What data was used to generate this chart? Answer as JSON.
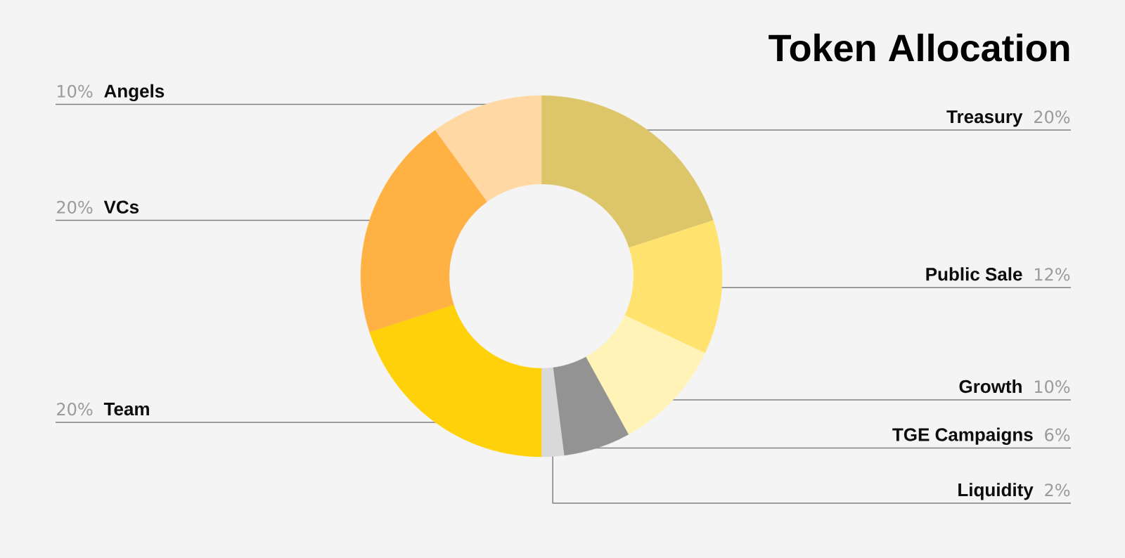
{
  "chart_data": {
    "type": "donut",
    "title": "Token Allocation",
    "categories": [
      "Treasury",
      "Public Sale",
      "Growth",
      "TGE Campaigns",
      "Liquidity",
      "Team",
      "VCs",
      "Angels"
    ],
    "values": [
      20,
      12,
      10,
      6,
      2,
      20,
      20,
      10
    ],
    "colors": [
      "#DDC66A",
      "#FFE36E",
      "#FFF3B8",
      "#939393",
      "#D9D9D9",
      "#FFD10A",
      "#FFB143",
      "#FFD8A3"
    ],
    "value_labels": [
      "20%",
      "12%",
      "10%",
      "6%",
      "2%",
      "20%",
      "20%",
      "10%"
    ]
  }
}
